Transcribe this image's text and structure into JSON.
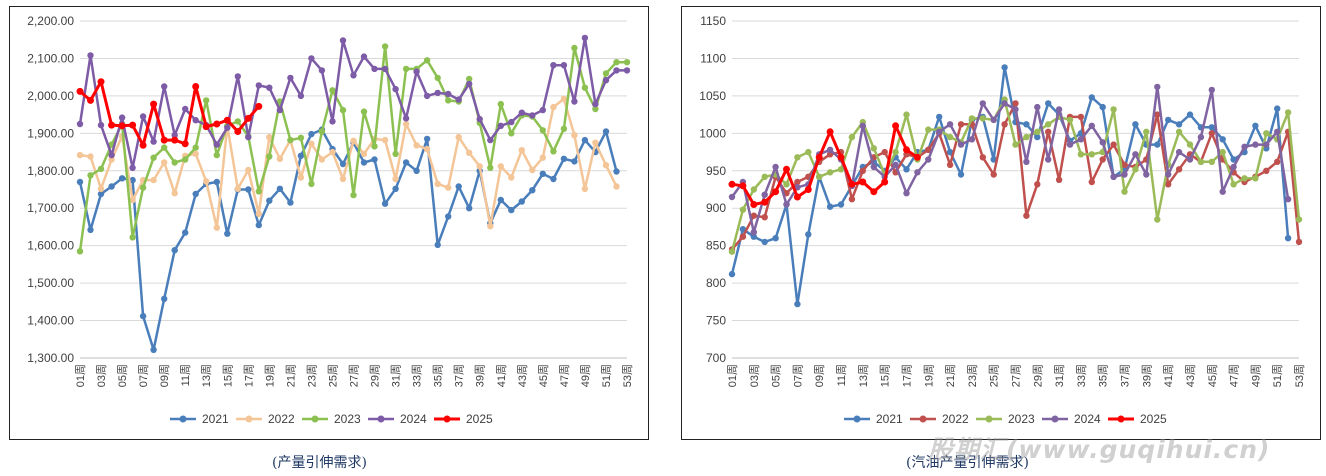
{
  "charts": [
    {
      "type": "line",
      "title": "",
      "caption": "(产量引伸需求)",
      "ylim": [
        1300,
        2200
      ],
      "yticks": [
        "2,200.00",
        "2,100.00",
        "2,000.00",
        "1,900.00",
        "1,800.00",
        "1,700.00",
        "1,600.00",
        "1,500.00",
        "1,400.00",
        "1,300.00"
      ],
      "ytick_values": [
        2200,
        2100,
        2000,
        1900,
        1800,
        1700,
        1600,
        1500,
        1400,
        1300
      ],
      "categories": [
        "01周",
        "02周",
        "03周",
        "04周",
        "05周",
        "06周",
        "07周",
        "08周",
        "09周",
        "10周",
        "11周",
        "12周",
        "13周",
        "14周",
        "15周",
        "16周",
        "17周",
        "18周",
        "19周",
        "20周",
        "21周",
        "22周",
        "23周",
        "24周",
        "25周",
        "26周",
        "27周",
        "28周",
        "29周",
        "30周",
        "31周",
        "32周",
        "33周",
        "34周",
        "35周",
        "36周",
        "37周",
        "38周",
        "39周",
        "40周",
        "41周",
        "42周",
        "43周",
        "44周",
        "45周",
        "46周",
        "47周",
        "48周",
        "49周",
        "50周",
        "51周",
        "52周",
        "53周"
      ],
      "xtick_labels": [
        "01周",
        "03周",
        "05周",
        "07周",
        "09周",
        "11周",
        "13周",
        "15周",
        "17周",
        "19周",
        "21周",
        "23周",
        "25周",
        "27周",
        "29周",
        "31周",
        "33周",
        "35周",
        "37周",
        "39周",
        "41周",
        "43周",
        "45周",
        "47周",
        "49周",
        "51周",
        "53周"
      ],
      "grid": true,
      "legend_position": "bottom",
      "series": [
        {
          "name": "2021",
          "color": "#4a7ebb",
          "width": 2.5,
          "values": [
            1770,
            1642,
            1738,
            1758,
            1780,
            1775,
            1412,
            1322,
            1458,
            1588,
            1635,
            1738,
            1765,
            1770,
            1632,
            1750,
            1750,
            1655,
            1720,
            1752,
            1715,
            1840,
            1898,
            1910,
            1858,
            1818,
            1875,
            1822,
            1830,
            1712,
            1752,
            1822,
            1800,
            1885,
            1602,
            1678,
            1758,
            1700,
            1800,
            1660,
            1722,
            1695,
            1718,
            1748,
            1792,
            1778,
            1832,
            1825,
            1882,
            1850,
            1905,
            1798,
            null
          ]
        },
        {
          "name": "2022",
          "color": "#f4c597",
          "width": 2.5,
          "values": [
            1842,
            1838,
            1752,
            1830,
            1892,
            1722,
            1775,
            1775,
            1822,
            1740,
            1840,
            1845,
            1772,
            1648,
            1920,
            1752,
            1802,
            1685,
            1890,
            1832,
            1882,
            1782,
            1872,
            1830,
            1850,
            1778,
            1880,
            1845,
            1885,
            1882,
            1778,
            1925,
            1868,
            1858,
            1765,
            1755,
            1890,
            1848,
            1812,
            1652,
            1812,
            1782,
            1855,
            1802,
            1835,
            1970,
            1992,
            1895,
            1752,
            1875,
            1815,
            1758,
            null
          ]
        },
        {
          "name": "2023",
          "color": "#8cc152",
          "width": 2.5,
          "values": [
            1585,
            1788,
            1805,
            1870,
            1925,
            1622,
            1755,
            1835,
            1862,
            1822,
            1830,
            1862,
            1988,
            1842,
            1920,
            1932,
            1892,
            1745,
            1838,
            1985,
            1882,
            1888,
            1765,
            1905,
            2015,
            1962,
            1735,
            1958,
            1865,
            2132,
            1845,
            2072,
            2072,
            2095,
            2048,
            1988,
            1985,
            2045,
            1928,
            1808,
            1978,
            1900,
            1948,
            1945,
            1908,
            1852,
            1912,
            2128,
            2022,
            1965,
            2060,
            2090,
            2090
          ]
        },
        {
          "name": "2024",
          "color": "#7d5ba6",
          "width": 2.5,
          "values": [
            1925,
            2108,
            1922,
            1842,
            1942,
            1808,
            1945,
            1878,
            2025,
            1895,
            1965,
            1935,
            1922,
            1870,
            1915,
            2052,
            1890,
            2028,
            2022,
            1962,
            2048,
            2000,
            2100,
            2068,
            1932,
            2148,
            2055,
            2105,
            2072,
            2072,
            2018,
            1940,
            2065,
            2000,
            2008,
            2005,
            1990,
            2032,
            1938,
            1882,
            1920,
            1930,
            1955,
            1948,
            1962,
            2082,
            2082,
            1985,
            2155,
            1978,
            2042,
            2068,
            2068
          ]
        },
        {
          "name": "2025",
          "color": "#ff0000",
          "width": 3,
          "values": [
            2012,
            1988,
            2038,
            1922,
            1920,
            1922,
            1868,
            1978,
            1882,
            1882,
            1872,
            2025,
            1918,
            1925,
            1935,
            1905,
            1940,
            1972,
            null,
            null,
            null,
            null,
            null,
            null,
            null,
            null,
            null,
            null,
            null,
            null,
            null,
            null,
            null,
            null,
            null,
            null,
            null,
            null,
            null,
            null,
            null,
            null,
            null,
            null,
            null,
            null,
            null,
            null,
            null,
            null,
            null,
            null,
            null
          ]
        }
      ]
    },
    {
      "type": "line",
      "title": "",
      "caption": "(汽油产量引伸需求)",
      "ylim": [
        700,
        1150
      ],
      "yticks": [
        "1150",
        "1100",
        "1050",
        "1000",
        "950",
        "900",
        "850",
        "800",
        "750",
        "700"
      ],
      "ytick_values": [
        1150,
        1100,
        1050,
        1000,
        950,
        900,
        850,
        800,
        750,
        700
      ],
      "categories": [
        "01周",
        "02周",
        "03周",
        "04周",
        "05周",
        "06周",
        "07周",
        "08周",
        "09周",
        "10周",
        "11周",
        "12周",
        "13周",
        "14周",
        "15周",
        "16周",
        "17周",
        "18周",
        "19周",
        "20周",
        "21周",
        "22周",
        "23周",
        "24周",
        "25周",
        "26周",
        "27周",
        "28周",
        "29周",
        "30周",
        "31周",
        "32周",
        "33周",
        "34周",
        "35周",
        "36周",
        "37周",
        "38周",
        "39周",
        "40周",
        "41周",
        "42周",
        "43周",
        "44周",
        "45周",
        "46周",
        "47周",
        "48周",
        "49周",
        "50周",
        "51周",
        "52周",
        "53周"
      ],
      "xtick_labels": [
        "01周",
        "03周",
        "05周",
        "07周",
        "09周",
        "11周",
        "13周",
        "15周",
        "17周",
        "19周",
        "21周",
        "23周",
        "25周",
        "27周",
        "29周",
        "31周",
        "33周",
        "35周",
        "37周",
        "39周",
        "41周",
        "43周",
        "45周",
        "47周",
        "49周",
        "51周",
        "53周"
      ],
      "grid": true,
      "legend_position": "bottom",
      "series": [
        {
          "name": "2021",
          "color": "#4a7ebb",
          "width": 2.5,
          "values": [
            812,
            872,
            862,
            855,
            860,
            905,
            772,
            865,
            942,
            902,
            905,
            930,
            955,
            962,
            950,
            968,
            952,
            975,
            978,
            1022,
            975,
            945,
            1018,
            1022,
            965,
            1088,
            1015,
            1012,
            995,
            1040,
            1025,
            990,
            1000,
            1048,
            1035,
            942,
            952,
            1012,
            985,
            985,
            1018,
            1012,
            1025,
            1008,
            1008,
            992,
            965,
            975,
            1010,
            980,
            1033,
            860,
            null
          ]
        },
        {
          "name": "2022",
          "color": "#c0504d",
          "width": 2.5,
          "values": [
            845,
            862,
            890,
            888,
            942,
            920,
            935,
            942,
            962,
            972,
            975,
            912,
            950,
            968,
            975,
            948,
            972,
            968,
            978,
            1000,
            958,
            1012,
            1012,
            968,
            945,
            1012,
            1040,
            890,
            932,
            1002,
            938,
            1022,
            1022,
            935,
            965,
            985,
            958,
            955,
            965,
            1025,
            932,
            952,
            972,
            962,
            1000,
            965,
            948,
            935,
            942,
            950,
            962,
            1002,
            855
          ]
        },
        {
          "name": "2023",
          "color": "#9bbb59",
          "width": 2.5,
          "values": [
            842,
            898,
            925,
            942,
            945,
            932,
            968,
            975,
            942,
            948,
            952,
            995,
            1015,
            980,
            945,
            975,
            1025,
            965,
            1005,
            1005,
            995,
            988,
            1020,
            1020,
            1018,
            1045,
            985,
            995,
            1002,
            1012,
            1022,
            1018,
            972,
            972,
            975,
            1032,
            922,
            952,
            1002,
            885,
            958,
            1002,
            985,
            962,
            962,
            975,
            932,
            940,
            940,
            1000,
            992,
            1028,
            885
          ]
        },
        {
          "name": "2024",
          "color": "#8064a2",
          "width": 2.5,
          "values": [
            915,
            935,
            868,
            918,
            955,
            905,
            928,
            932,
            972,
            978,
            965,
            930,
            1010,
            955,
            942,
            958,
            920,
            948,
            965,
            1002,
            1012,
            985,
            992,
            1040,
            1018,
            1040,
            1032,
            962,
            1035,
            965,
            1032,
            985,
            992,
            1010,
            988,
            942,
            945,
            972,
            945,
            1062,
            945,
            975,
            965,
            995,
            1058,
            922,
            955,
            982,
            985,
            985,
            1002,
            912,
            null
          ]
        },
        {
          "name": "2025",
          "color": "#ff0000",
          "width": 3,
          "values": [
            932,
            930,
            905,
            908,
            922,
            952,
            915,
            925,
            968,
            1002,
            968,
            932,
            935,
            922,
            935,
            1010,
            978,
            968,
            null,
            null,
            null,
            null,
            null,
            null,
            null,
            null,
            null,
            null,
            null,
            null,
            null,
            null,
            null,
            null,
            null,
            null,
            null,
            null,
            null,
            null,
            null,
            null,
            null,
            null,
            null,
            null,
            null,
            null,
            null,
            null,
            null,
            null,
            null
          ]
        }
      ]
    }
  ],
  "watermark": "股期汇(www.guqihui.cn)"
}
